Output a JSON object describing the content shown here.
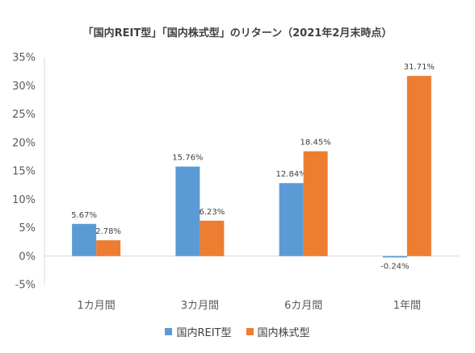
{
  "chart_data": {
    "type": "bar",
    "title": "「国内REIT型」「国内株式型」のリターン（2021年2月末時点）",
    "categories": [
      "1カ月間",
      "3カ月間",
      "6カ月間",
      "1年間"
    ],
    "series": [
      {
        "name": "国内REIT型",
        "color": "#5b9bd5",
        "values": [
          5.67,
          15.76,
          12.84,
          -0.24
        ],
        "labels": [
          "5.67%",
          "15.76%",
          "12.84%",
          "-0.24%"
        ]
      },
      {
        "name": "国内株式型",
        "color": "#ed7d31",
        "values": [
          2.78,
          6.23,
          18.45,
          31.71
        ],
        "labels": [
          "2.78%",
          "6.23%",
          "18.45%",
          "31.71%"
        ]
      }
    ],
    "y_ticks": [
      {
        "value": 35,
        "label": "35%"
      },
      {
        "value": 30,
        "label": "30%"
      },
      {
        "value": 25,
        "label": "25%"
      },
      {
        "value": 20,
        "label": "20%"
      },
      {
        "value": 15,
        "label": "15%"
      },
      {
        "value": 10,
        "label": "10%"
      },
      {
        "value": 5,
        "label": "5%"
      },
      {
        "value": 0,
        "label": "0%"
      },
      {
        "value": -5,
        "label": "-5%"
      }
    ],
    "ylim": [
      -5,
      35
    ],
    "xlabel": "",
    "ylabel": "",
    "grid": false,
    "legend": "bottom"
  }
}
